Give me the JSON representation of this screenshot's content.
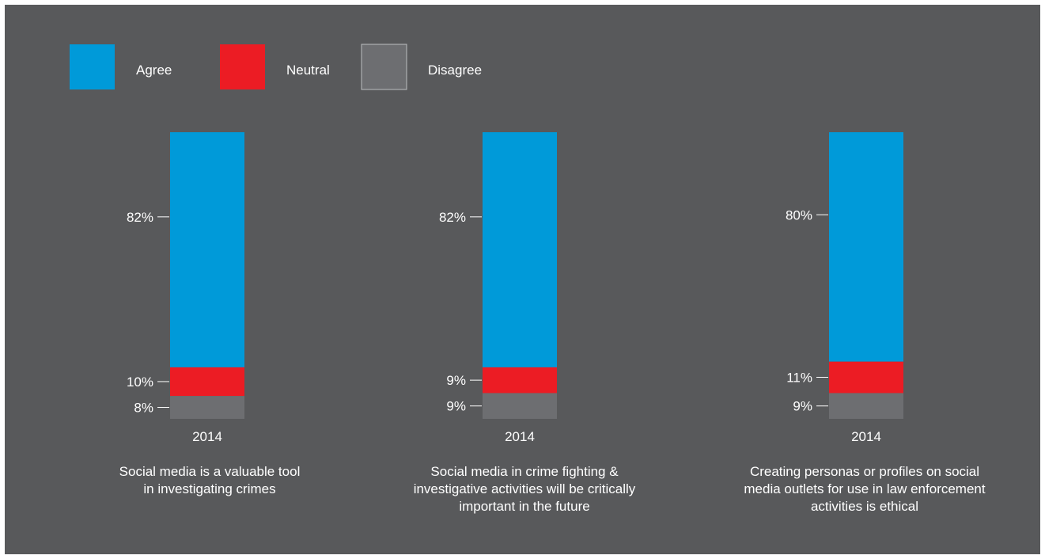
{
  "colors": {
    "background": "#58595b",
    "agree": "#009ad9",
    "neutral": "#ec1c24",
    "disagree": "#6d6e71",
    "text": "#ffffff",
    "tick": "#ffffff"
  },
  "legend": [
    {
      "label": "Agree",
      "color": "#009ad9"
    },
    {
      "label": "Neutral",
      "color": "#ec1c24"
    },
    {
      "label": "Disagree",
      "color": "#6d6e71"
    }
  ],
  "chart_data": {
    "type": "bar",
    "stacked": true,
    "grid": false,
    "legend_position": "top-left",
    "ylim": [
      0,
      100
    ],
    "series_names": [
      "Agree",
      "Neutral",
      "Disagree"
    ],
    "panels": [
      {
        "category": "2014",
        "caption": "Social media is a valuable tool\nin investigating crimes",
        "values": {
          "Agree": 82,
          "Neutral": 10,
          "Disagree": 8
        },
        "labels": {
          "Agree": "82%",
          "Neutral": "10%",
          "Disagree": "8%"
        }
      },
      {
        "category": "2014",
        "caption": "Social media in crime fighting &\ninvestigative activities will be critically\nimportant in the future",
        "values": {
          "Agree": 82,
          "Neutral": 9,
          "Disagree": 9
        },
        "labels": {
          "Agree": "82%",
          "Neutral": "9%",
          "Disagree": "9%"
        }
      },
      {
        "category": "2014",
        "caption": "Creating personas or profiles on social\nmedia outlets for use in law enforcement\nactivities is ethical",
        "values": {
          "Agree": 80,
          "Neutral": 11,
          "Disagree": 9
        },
        "labels": {
          "Agree": "80%",
          "Neutral": "11%",
          "Disagree": "9%"
        }
      }
    ]
  }
}
